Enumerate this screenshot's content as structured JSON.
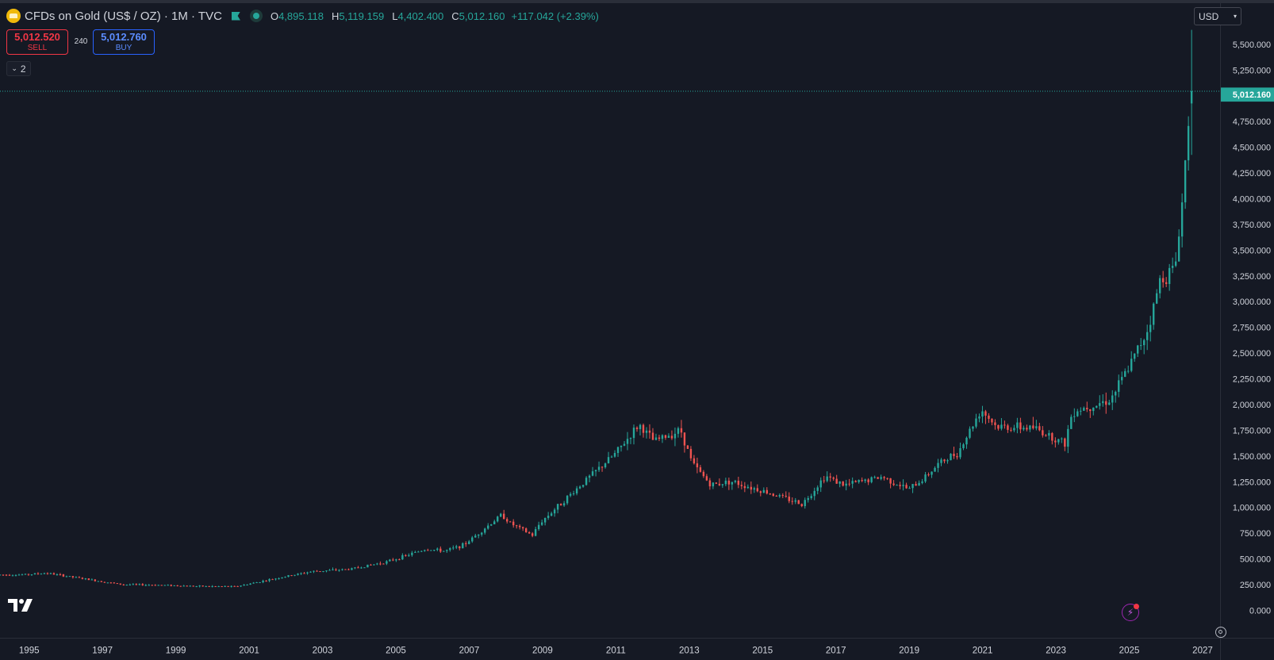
{
  "legend": {
    "title": "CFDs on Gold (US$ / OZ) · 1M · TVC",
    "open_label": "O",
    "open": "4,895.118",
    "high_label": "H",
    "high": "5,119.159",
    "low_label": "L",
    "low": "4,402.400",
    "close_label": "C",
    "close": "5,012.160",
    "change": "+117.042 (+2.39%)"
  },
  "trade": {
    "sell_price": "5,012.520",
    "sell_label": "SELL",
    "spread": "240",
    "buy_price": "5,012.760",
    "buy_label": "BUY"
  },
  "indicators_toggle": {
    "count": "2"
  },
  "currency": {
    "selected": "USD"
  },
  "last_price_label": "5,012.160",
  "colors": {
    "up": "#26a69a",
    "down": "#ef5350",
    "background": "#151924",
    "grid": "#2a2e39"
  },
  "icons": [
    "gold-coin-icon",
    "flag-icon",
    "market-status-icon",
    "chevron-down-icon",
    "tradingview-logo-icon",
    "bolt-icon",
    "settings-icon"
  ],
  "chart_data": {
    "type": "candlestick",
    "interval": "1M",
    "y_axis": {
      "range": [
        0,
        5650
      ],
      "ticks": [
        0,
        250,
        500,
        750,
        1000,
        1250,
        1500,
        1750,
        2000,
        2250,
        2500,
        2750,
        3000,
        3250,
        3500,
        3750,
        4000,
        4250,
        4500,
        4750,
        5250,
        5500
      ],
      "tick_labels": [
        "0.000",
        "250.000",
        "500.000",
        "750.000",
        "1,000.000",
        "1,250.000",
        "1,500.000",
        "1,750.000",
        "2,000.000",
        "2,250.000",
        "2,500.000",
        "2,750.000",
        "3,000.000",
        "3,250.000",
        "3,500.000",
        "3,750.000",
        "4,000.000",
        "4,250.000",
        "4,500.000",
        "4,750.000",
        "5,250.000",
        "5,500.000"
      ],
      "last_price": 5012.16
    },
    "x_axis": {
      "range": [
        1994.8,
        2028.3
      ],
      "tick_values": [
        1995,
        1997,
        1999,
        2001,
        2003,
        2005,
        2007,
        2009,
        2011,
        2013,
        2015,
        2017,
        2019,
        2021,
        2023,
        2025,
        2027
      ],
      "tick_labels": [
        "1995",
        "1997",
        "1999",
        "2001",
        "2003",
        "2005",
        "2007",
        "2009",
        "2011",
        "2013",
        "2015",
        "2017",
        "2019",
        "2021",
        "2023",
        "2025",
        "2027"
      ]
    },
    "approx_monthly_close_by_year": {
      "years": [
        1994.8,
        1995.5,
        1996,
        1997,
        1998,
        1999,
        2000,
        2001,
        2002,
        2003,
        2004,
        2005,
        2006,
        2006.5,
        2007,
        2008,
        2008.2,
        2008.8,
        2009,
        2010,
        2011,
        2011.6,
        2012,
        2012.7,
        2013,
        2013.5,
        2014,
        2015,
        2015.9,
        2016.5,
        2017,
        2018,
        2018.7,
        2019,
        2019.5,
        2020,
        2020.6,
        2021,
        2022,
        2022.8,
        2023,
        2024,
        2024.5,
        2025,
        2025.3,
        2025.7,
        2025.9,
        2026.1
      ],
      "close": [
        383,
        385,
        400,
        345,
        290,
        285,
        273,
        270,
        345,
        415,
        437,
        510,
        630,
        610,
        670,
        960,
        880,
        760,
        880,
        1220,
        1550,
        1820,
        1660,
        1770,
        1450,
        1240,
        1280,
        1170,
        1060,
        1330,
        1240,
        1320,
        1200,
        1280,
        1450,
        1560,
        1970,
        1800,
        1790,
        1640,
        1950,
        2060,
        2380,
        2750,
        3200,
        3330,
        4000,
        5012.16
      ]
    }
  }
}
